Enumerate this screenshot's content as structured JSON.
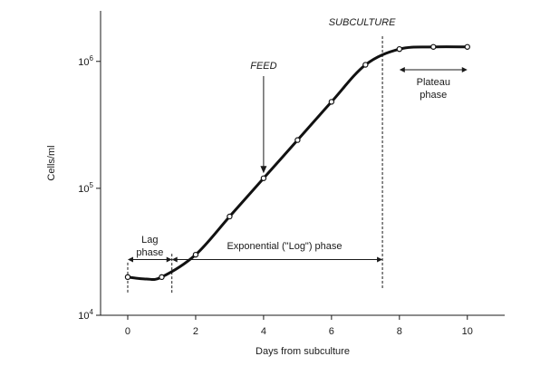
{
  "chart_data": {
    "type": "line",
    "xlabel": "Days from subculture",
    "ylabel": "Cells/ml",
    "xlim": [
      -0.8,
      11.1
    ],
    "ylim": [
      10000,
      2500000
    ],
    "y_scale": "log",
    "grid": false,
    "x_ticks": [
      0,
      2,
      4,
      6,
      8,
      10
    ],
    "y_ticks": [
      {
        "value": 10000,
        "base": "10",
        "exp": "4"
      },
      {
        "value": 100000,
        "base": "10",
        "exp": "5"
      },
      {
        "value": 1000000,
        "base": "10",
        "exp": "6"
      }
    ],
    "series": [
      {
        "x": [
          0,
          1,
          2,
          3,
          4,
          5,
          6,
          7,
          8,
          9,
          10
        ],
        "y": [
          20000,
          20000,
          30000,
          60000,
          120000,
          240000,
          480000,
          940000,
          1250000,
          1300000,
          1300000
        ]
      }
    ],
    "phase_boundaries": [
      {
        "x": 1.3,
        "label": "end-of-lag"
      },
      {
        "x": 7.5,
        "label": "end-of-exponential"
      }
    ],
    "annotations": {
      "lag": "Lag\nphase",
      "log": "Exponential (\"Log\") phase",
      "plateau": "Plateau\nphase",
      "feed": "FEED",
      "subculture": "SUBCULTURE"
    }
  }
}
